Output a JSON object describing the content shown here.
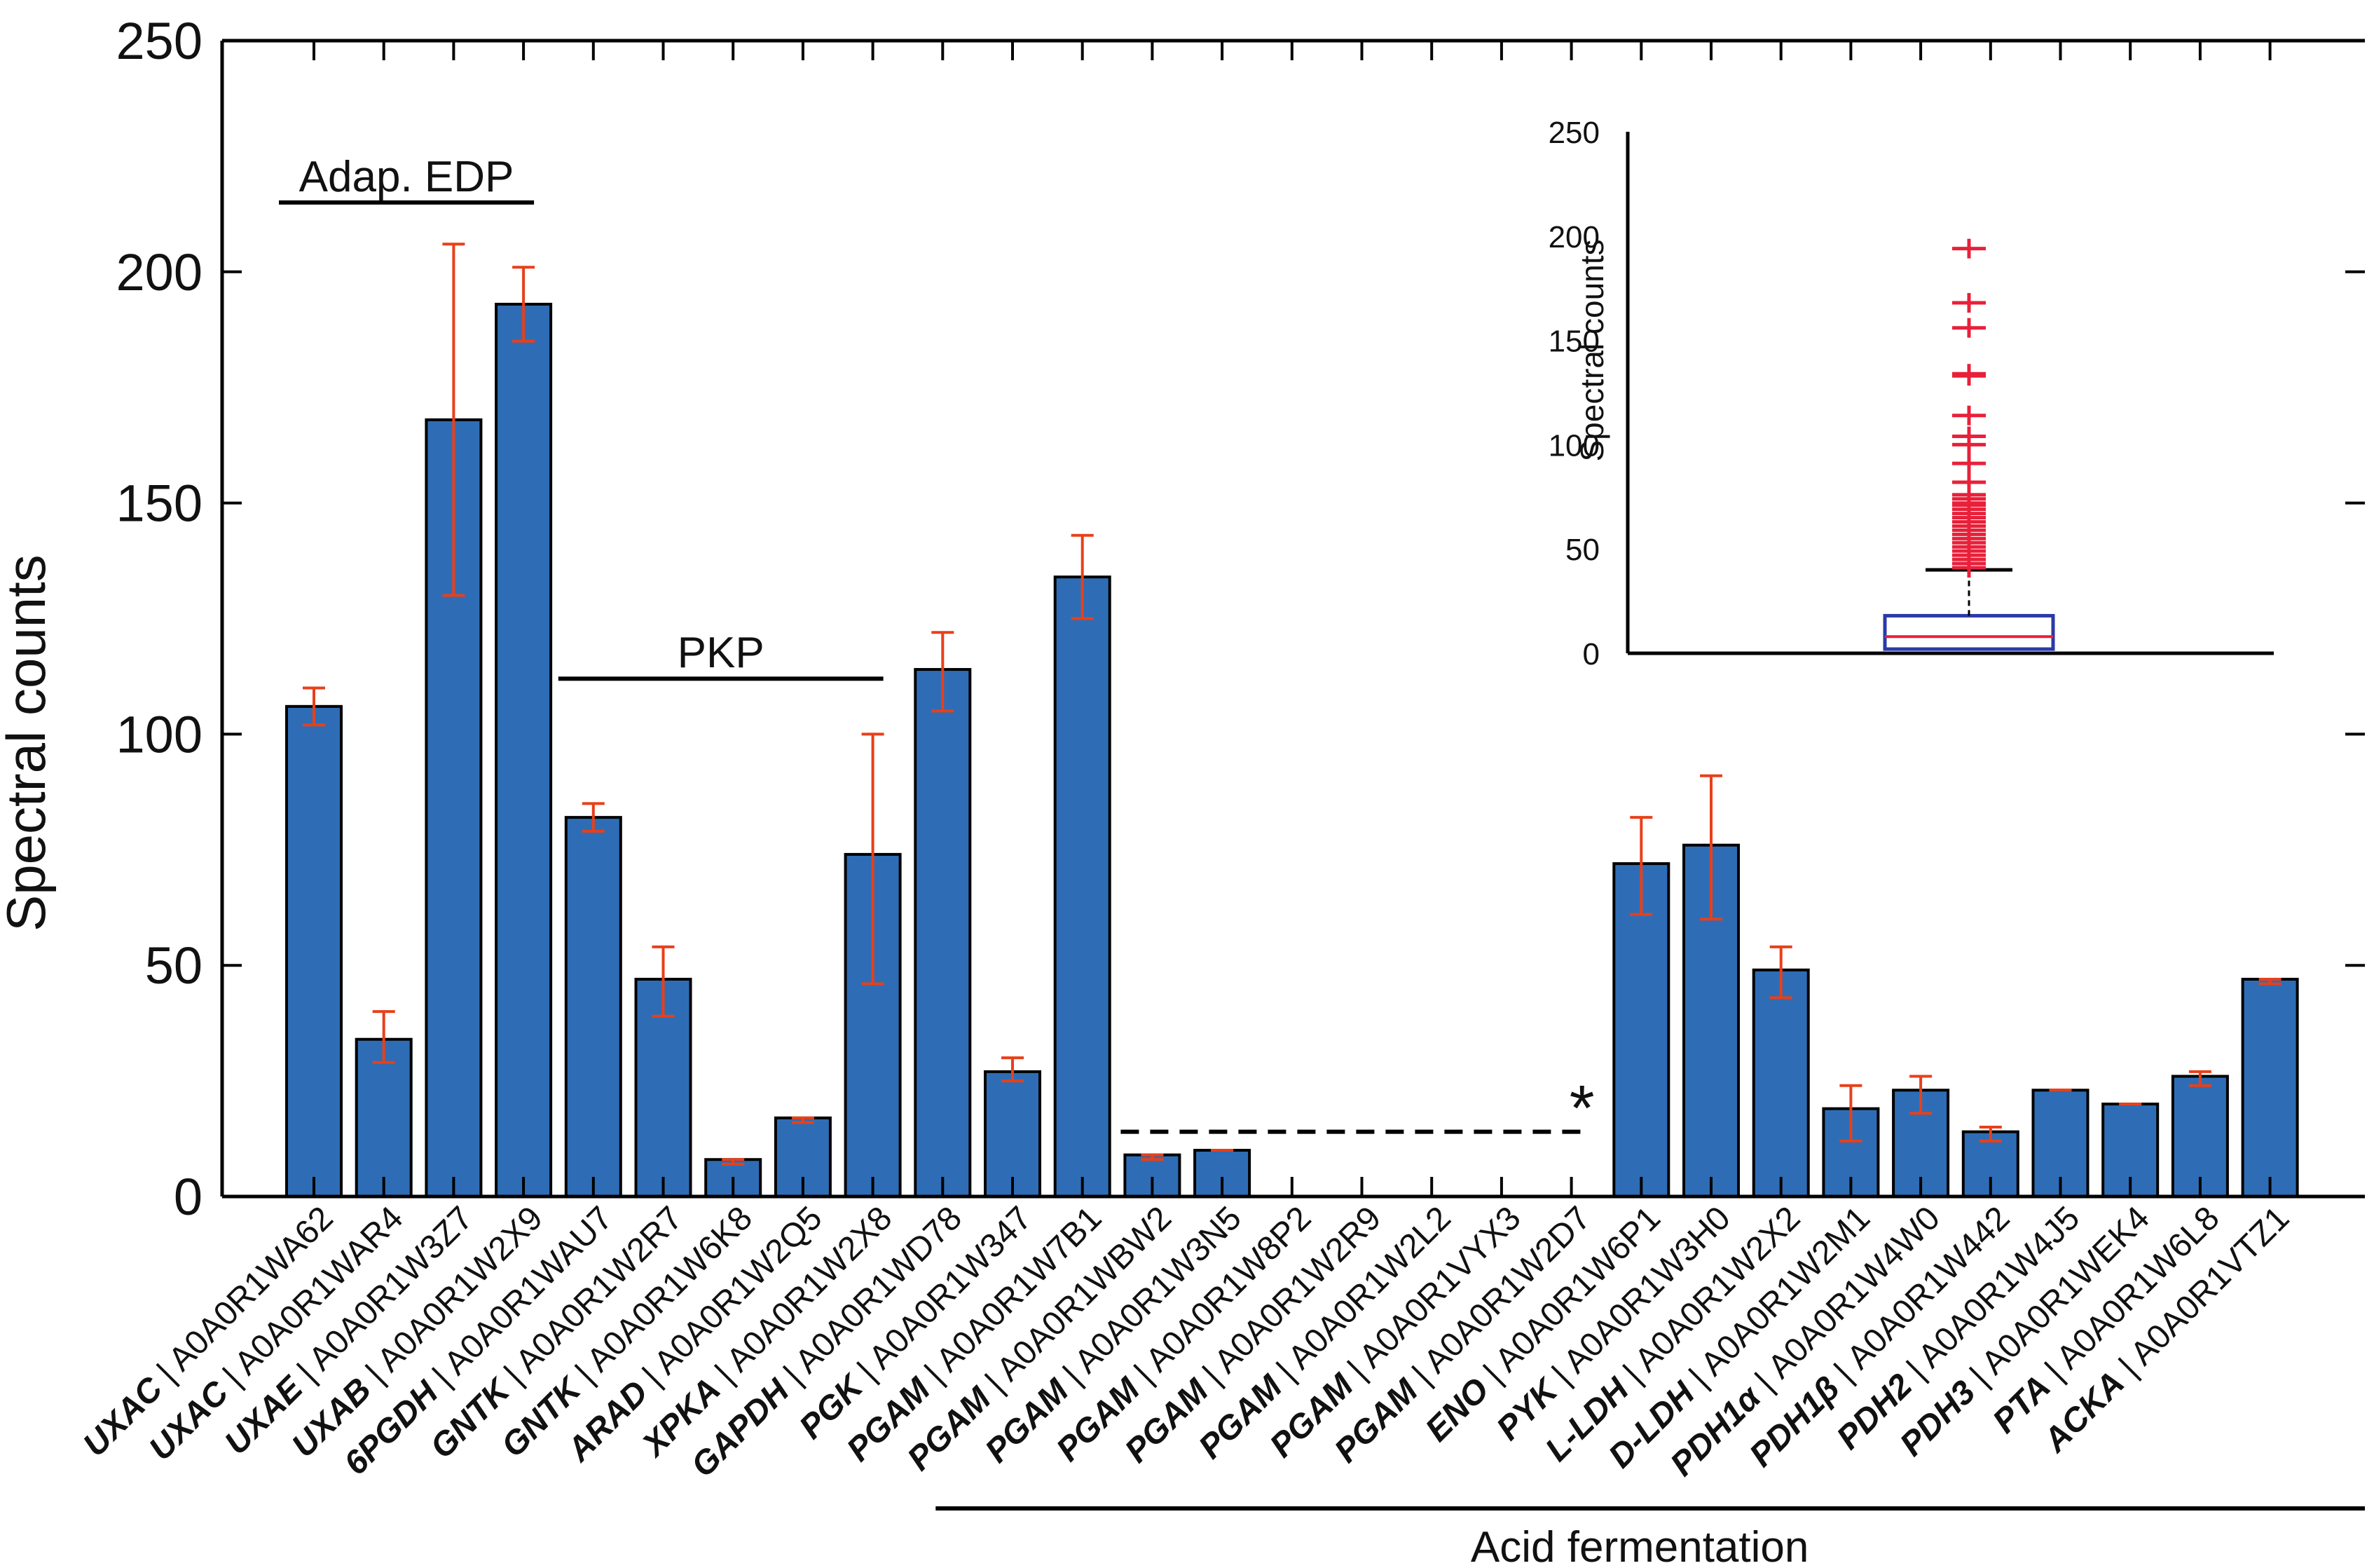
{
  "colors": {
    "bar": "#2e6db5",
    "bar_edge": "#000000",
    "error": "#e8401a",
    "axis": "#000000",
    "inset_box": "#2b3aa8",
    "inset_median": "#e8203a",
    "inset_outlier": "#e8203a"
  },
  "chart_data": {
    "type": "bar",
    "ylabel": "Spectral counts",
    "ylim": [
      0,
      250
    ],
    "yticks": [
      0,
      50,
      100,
      150,
      200,
      250
    ],
    "categories": [
      {
        "gene": "UXAC",
        "id": "A0A0R1WA62"
      },
      {
        "gene": "UXAC",
        "id": "A0A0R1WAR4"
      },
      {
        "gene": "UXAE",
        "id": "A0A0R1W3Z7"
      },
      {
        "gene": "UXAB",
        "id": "A0A0R1W2X9"
      },
      {
        "gene": "6PGDH",
        "id": "A0A0R1WAU7"
      },
      {
        "gene": "GNTK",
        "id": "A0A0R1W2R7"
      },
      {
        "gene": "GNTK",
        "id": "A0A0R1W6K8"
      },
      {
        "gene": "ARAD",
        "id": "A0A0R1W2Q5"
      },
      {
        "gene": "XPKA",
        "id": "A0A0R1W2X8"
      },
      {
        "gene": "GAPDH",
        "id": "A0A0R1WD78"
      },
      {
        "gene": "PGK",
        "id": "A0A0R1W347"
      },
      {
        "gene": "PGAM",
        "id": "A0A0R1W7B1"
      },
      {
        "gene": "PGAM",
        "id": "A0A0R1WBW2"
      },
      {
        "gene": "PGAM",
        "id": "A0A0R1W3N5"
      },
      {
        "gene": "PGAM",
        "id": "A0A0R1W8P2"
      },
      {
        "gene": "PGAM",
        "id": "A0A0R1W2R9"
      },
      {
        "gene": "PGAM",
        "id": "A0A0R1W2L2"
      },
      {
        "gene": "PGAM",
        "id": "A0A0R1VYX3"
      },
      {
        "gene": "PGAM",
        "id": "A0A0R1W2D7"
      },
      {
        "gene": "ENO",
        "id": "A0A0R1W6P1"
      },
      {
        "gene": "PYK",
        "id": "A0A0R1W3H0"
      },
      {
        "gene": "L-LDH",
        "id": "A0A0R1W2X2"
      },
      {
        "gene": "D-LDH",
        "id": "A0A0R1W2M1"
      },
      {
        "gene": "PDH1α",
        "id": "A0A0R1W4W0"
      },
      {
        "gene": "PDH1β",
        "id": "A0A0R1W442"
      },
      {
        "gene": "PDH2",
        "id": "A0A0R1W4J5"
      },
      {
        "gene": "PDH3",
        "id": "A0A0R1WEK4"
      },
      {
        "gene": "PTA",
        "id": "A0A0R1W6L8"
      },
      {
        "gene": "ACKA",
        "id": "A0A0R1VTZ1"
      }
    ],
    "values": [
      106,
      34,
      168,
      193,
      82,
      47,
      8,
      17,
      74,
      114,
      27,
      134,
      9,
      10,
      0,
      0,
      0,
      0,
      0,
      72,
      76,
      49,
      19,
      23,
      14,
      23,
      20,
      26,
      47
    ],
    "errors": [
      [
        102,
        110
      ],
      [
        29,
        40
      ],
      [
        130,
        206
      ],
      [
        185,
        201
      ],
      [
        79,
        85
      ],
      [
        39,
        54
      ],
      [
        7,
        8
      ],
      [
        16,
        17
      ],
      [
        46,
        100
      ],
      [
        105,
        122
      ],
      [
        25,
        30
      ],
      [
        125,
        143
      ],
      [
        8,
        9
      ],
      [
        10,
        10
      ],
      null,
      null,
      null,
      null,
      null,
      [
        61,
        82
      ],
      [
        60,
        91
      ],
      [
        43,
        54
      ],
      [
        12,
        24
      ],
      [
        18,
        26
      ],
      [
        12,
        15
      ],
      [
        23,
        23
      ],
      [
        20,
        20
      ],
      [
        24,
        27
      ],
      [
        46,
        47
      ]
    ],
    "groups": [
      {
        "label": "Adap. EDP",
        "from": 0,
        "to": 3,
        "level": 215
      },
      {
        "label": "PKP",
        "from": 4,
        "to": 8,
        "level": 112
      }
    ],
    "bottom_group": {
      "label": "Acid fermentation",
      "from": 9,
      "to": 28
    },
    "missing_marker": {
      "symbol": "*",
      "from": 12,
      "to": 18,
      "level": 14
    },
    "inset": {
      "type": "boxplot",
      "ylabel": "Spectral counts",
      "ylim": [
        0,
        250
      ],
      "yticks": [
        0,
        50,
        100,
        150,
        200,
        250
      ],
      "box": {
        "q1": 2,
        "median": 8,
        "q3": 18,
        "whisker_high": 40,
        "whisker_low": 2
      },
      "outliers": [
        194,
        168,
        156,
        134,
        133,
        114,
        104,
        100,
        91,
        82,
        76,
        74,
        72,
        71,
        69,
        67,
        65,
        63,
        61,
        59,
        57,
        55,
        53,
        51,
        49,
        47,
        45,
        43,
        41
      ]
    }
  }
}
